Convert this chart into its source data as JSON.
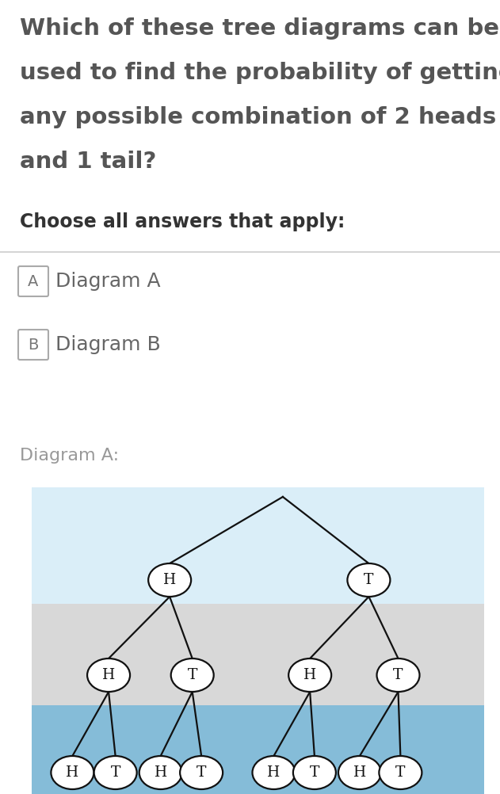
{
  "question_lines": [
    "Which of these tree diagrams can be",
    "used to find the probability of getting",
    "any possible combination of 2 heads",
    "and 1 tail?"
  ],
  "choose_text": "Choose all answers that apply:",
  "option_A_text": "Diagram A",
  "option_B_text": "Diagram B",
  "diagram_A_title": "Diagram A:",
  "bg_color": "#ffffff",
  "question_color": "#555555",
  "choose_color": "#333333",
  "option_color": "#666666",
  "diagram_title_color": "#999999",
  "sep_color": "#cccccc",
  "box_color": "#aaaaaa",
  "row1_bg": "#daeef8",
  "row2_bg": "#d8d8d8",
  "row3_bg": "#85bcd8",
  "node_fill": "#ffffff",
  "node_edge": "#111111",
  "line_color": "#111111",
  "level1_labels": [
    "H",
    "T"
  ],
  "level2_labels": [
    "H",
    "T",
    "H",
    "T"
  ],
  "level3_labels": [
    "H",
    "T",
    "H",
    "T",
    "H",
    "T",
    "H",
    "T"
  ]
}
